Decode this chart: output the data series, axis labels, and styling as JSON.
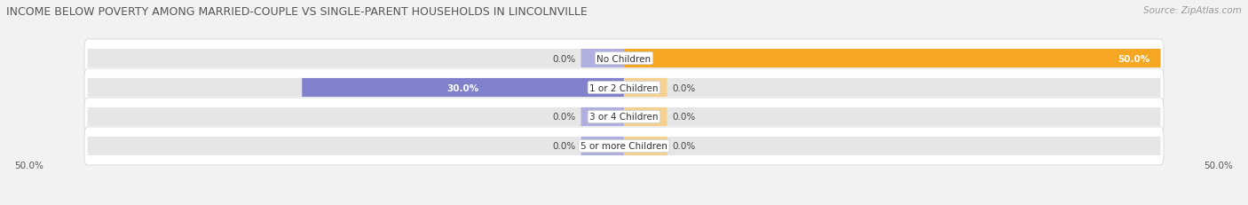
{
  "title": "INCOME BELOW POVERTY AMONG MARRIED-COUPLE VS SINGLE-PARENT HOUSEHOLDS IN LINCOLNVILLE",
  "source": "Source: ZipAtlas.com",
  "categories": [
    "No Children",
    "1 or 2 Children",
    "3 or 4 Children",
    "5 or more Children"
  ],
  "married_values": [
    0.0,
    30.0,
    0.0,
    0.0
  ],
  "single_values": [
    50.0,
    0.0,
    0.0,
    0.0
  ],
  "married_color": "#8080cc",
  "single_color": "#f5a623",
  "married_default_color": "#b0b0e0",
  "single_default_color": "#f5d090",
  "bg_color": "#f2f2f2",
  "bar_bg_color": "#e6e6e6",
  "row_bg_color": "#ebebeb",
  "axis_max": 50.0,
  "title_fontsize": 9.0,
  "source_fontsize": 7.5,
  "label_fontsize": 7.5,
  "category_fontsize": 7.5,
  "legend_fontsize": 7.5,
  "bar_height": 0.62,
  "default_bar_width": 4.0
}
